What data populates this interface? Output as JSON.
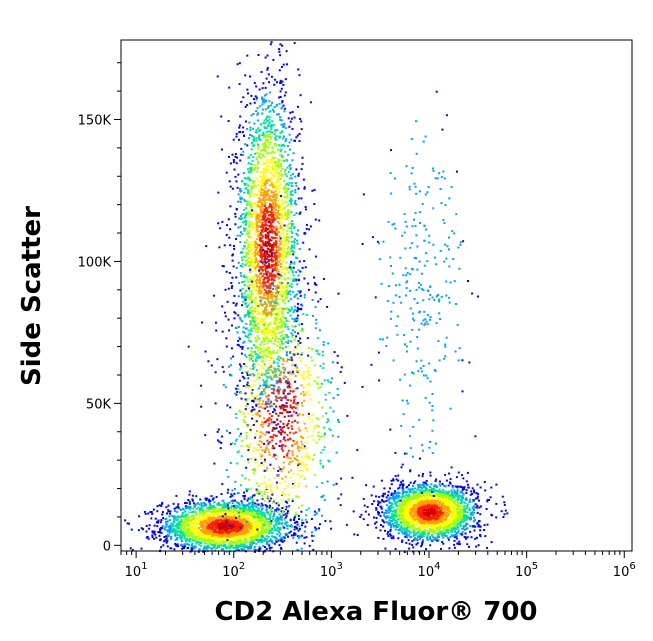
{
  "chart_data": {
    "type": "scatter",
    "title": "",
    "xlabel": "CD2 Alexa Fluor® 700",
    "ylabel": "Side Scatter",
    "x_scale": "log",
    "xlim": [
      7,
      1200000
    ],
    "ylim": [
      -2000,
      178000
    ],
    "x_ticks": [
      {
        "base": "10",
        "exp": "1",
        "value": 10
      },
      {
        "base": "10",
        "exp": "2",
        "value": 100
      },
      {
        "base": "10",
        "exp": "3",
        "value": 1000
      },
      {
        "base": "10",
        "exp": "4",
        "value": 10000
      },
      {
        "base": "10",
        "exp": "5",
        "value": 100000
      },
      {
        "base": "10",
        "exp": "6",
        "value": 1000000
      }
    ],
    "y_ticks": [
      {
        "label": "0",
        "value": 0
      },
      {
        "label": "50K",
        "value": 50000
      },
      {
        "label": "100K",
        "value": 100000
      },
      {
        "label": "150K",
        "value": 150000
      }
    ],
    "grid": false,
    "legend": "none",
    "density_colors": [
      "#0000ff",
      "#00a0ff",
      "#00e0a0",
      "#a0ff00",
      "#ffff00",
      "#ffa000",
      "#ff2000",
      "#d00000"
    ],
    "populations": [
      {
        "center_x": 80,
        "center_y": 7000,
        "spread_log_x": 0.32,
        "spread_y": 4500,
        "weight": 0.3
      },
      {
        "center_x": 220,
        "center_y": 105000,
        "spread_log_x": 0.16,
        "spread_y": 28000,
        "weight": 0.3
      },
      {
        "center_x": 10000,
        "center_y": 12000,
        "spread_log_x": 0.24,
        "spread_y": 5000,
        "weight": 0.26
      },
      {
        "center_x": 8000,
        "center_y": 90000,
        "spread_log_x": 0.22,
        "spread_y": 30000,
        "weight": 0.03
      },
      {
        "center_x": 300,
        "center_y": 45000,
        "spread_log_x": 0.3,
        "spread_y": 25000,
        "weight": 0.11
      }
    ]
  }
}
